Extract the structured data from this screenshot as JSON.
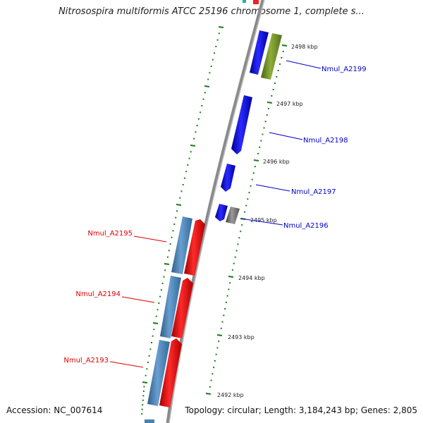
{
  "title": "Nitrosospira multiformis ATCC 25196 chromosome 1, complete s...",
  "footer": {
    "accession": "Accession: NC_007614",
    "topology": "Topology: circular; Length: 3,184,243 bp; Genes: 2,805"
  },
  "ticks": [
    "2498 kbp",
    "2497 kbp",
    "2496 kbp",
    "2495 kbp",
    "2494 kbp",
    "2493 kbp",
    "2492 kbp"
  ],
  "genes": [
    {
      "name": "Nmul_A2199",
      "strand": "forward",
      "color": "#0000cc"
    },
    {
      "name": "Nmul_A2198",
      "strand": "forward",
      "color": "#0000cc"
    },
    {
      "name": "Nmul_A2197",
      "strand": "forward",
      "color": "#0000cc"
    },
    {
      "name": "Nmul_A2196",
      "strand": "forward",
      "color": "#0000cc"
    },
    {
      "name": "Nmul_A2195",
      "strand": "reverse",
      "color": "#dd0000"
    },
    {
      "name": "Nmul_A2194",
      "strand": "reverse",
      "color": "#dd0000"
    },
    {
      "name": "Nmul_A2193",
      "strand": "reverse",
      "color": "#dd0000"
    }
  ],
  "colors": {
    "backbone": "#888888",
    "tick": "#1a7a1a",
    "forward_cds": "#0000ee",
    "reverse_cds": "#ee0000",
    "cog": "#4682b4",
    "cog_green": "#6b8e23",
    "other": "#666666"
  }
}
